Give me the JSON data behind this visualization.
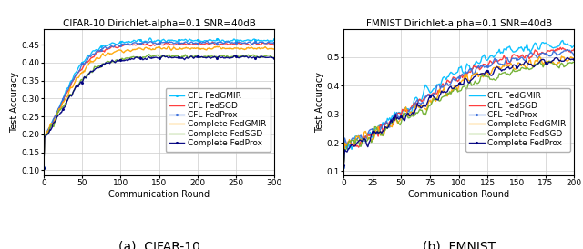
{
  "cifar10": {
    "title": "CIFAR-10 Dirichlet-alpha=0.1 SNR=40dB",
    "xlabel": "Communication Round",
    "ylabel": "Test Accuracy",
    "rounds": 300,
    "ylim": [
      0.085,
      0.495
    ],
    "yticks": [
      0.1,
      0.15,
      0.2,
      0.25,
      0.3,
      0.35,
      0.4,
      0.45
    ],
    "xticks": [
      0,
      50,
      100,
      150,
      200,
      250,
      300
    ],
    "seed": 42,
    "midpoint": 22,
    "lines": [
      {
        "label": "CFL FedGMIR",
        "color": "#00bfff",
        "lw": 1.0,
        "final": 0.462,
        "start": 0.107,
        "k": 0.055,
        "noise": 0.006,
        "marker": true
      },
      {
        "label": "CFL FedSGD",
        "color": "#ff3333",
        "lw": 1.0,
        "final": 0.452,
        "start": 0.107,
        "k": 0.052,
        "noise": 0.005,
        "marker": false
      },
      {
        "label": "CFL FedProx",
        "color": "#3a6fdb",
        "lw": 1.0,
        "final": 0.456,
        "start": 0.107,
        "k": 0.053,
        "noise": 0.005,
        "marker": true
      },
      {
        "label": "Complete FedGMIR",
        "color": "#ffa500",
        "lw": 1.0,
        "final": 0.44,
        "start": 0.107,
        "k": 0.05,
        "noise": 0.007,
        "marker": false
      },
      {
        "label": "Complete FedSGD",
        "color": "#70b030",
        "lw": 1.0,
        "final": 0.418,
        "start": 0.107,
        "k": 0.047,
        "noise": 0.007,
        "marker": false
      },
      {
        "label": "Complete FedProx",
        "color": "#000080",
        "lw": 1.0,
        "final": 0.415,
        "start": 0.107,
        "k": 0.047,
        "noise": 0.006,
        "marker": true
      }
    ]
  },
  "fmnist": {
    "title": "FMNIST Dirichlet-alpha=0.1 SNR=40dB",
    "xlabel": "Communication Round",
    "ylabel": "Test Accuracy",
    "rounds": 200,
    "ylim": [
      0.085,
      0.6
    ],
    "yticks": [
      0.1,
      0.2,
      0.3,
      0.4,
      0.5
    ],
    "xticks": [
      0,
      25,
      50,
      75,
      100,
      125,
      150,
      175,
      200
    ],
    "seed": 99,
    "midpoint": 60,
    "lines": [
      {
        "label": "CFL FedGMIR",
        "color": "#00bfff",
        "lw": 1.0,
        "final": 0.555,
        "start": 0.12,
        "k": 0.03,
        "noise": 0.025,
        "marker": false
      },
      {
        "label": "CFL FedSGD",
        "color": "#ff3333",
        "lw": 1.0,
        "final": 0.535,
        "start": 0.12,
        "k": 0.028,
        "noise": 0.022,
        "marker": false
      },
      {
        "label": "CFL FedProx",
        "color": "#3a6fdb",
        "lw": 1.0,
        "final": 0.53,
        "start": 0.12,
        "k": 0.028,
        "noise": 0.02,
        "marker": true
      },
      {
        "label": "Complete FedGMIR",
        "color": "#ffa500",
        "lw": 1.0,
        "final": 0.505,
        "start": 0.12,
        "k": 0.026,
        "noise": 0.028,
        "marker": false
      },
      {
        "label": "Complete FedSGD",
        "color": "#70b030",
        "lw": 1.0,
        "final": 0.49,
        "start": 0.12,
        "k": 0.025,
        "noise": 0.022,
        "marker": false
      },
      {
        "label": "Complete FedProx",
        "color": "#000080",
        "lw": 1.0,
        "final": 0.505,
        "start": 0.12,
        "k": 0.026,
        "noise": 0.02,
        "marker": true
      }
    ]
  },
  "caption_a": "(a)  CIFAR-10",
  "caption_b": "(b)  FMNIST",
  "caption_fontsize": 10,
  "legend_fontsize": 6.5,
  "title_fontsize": 7.5,
  "axis_fontsize": 7,
  "tick_fontsize": 6.5
}
